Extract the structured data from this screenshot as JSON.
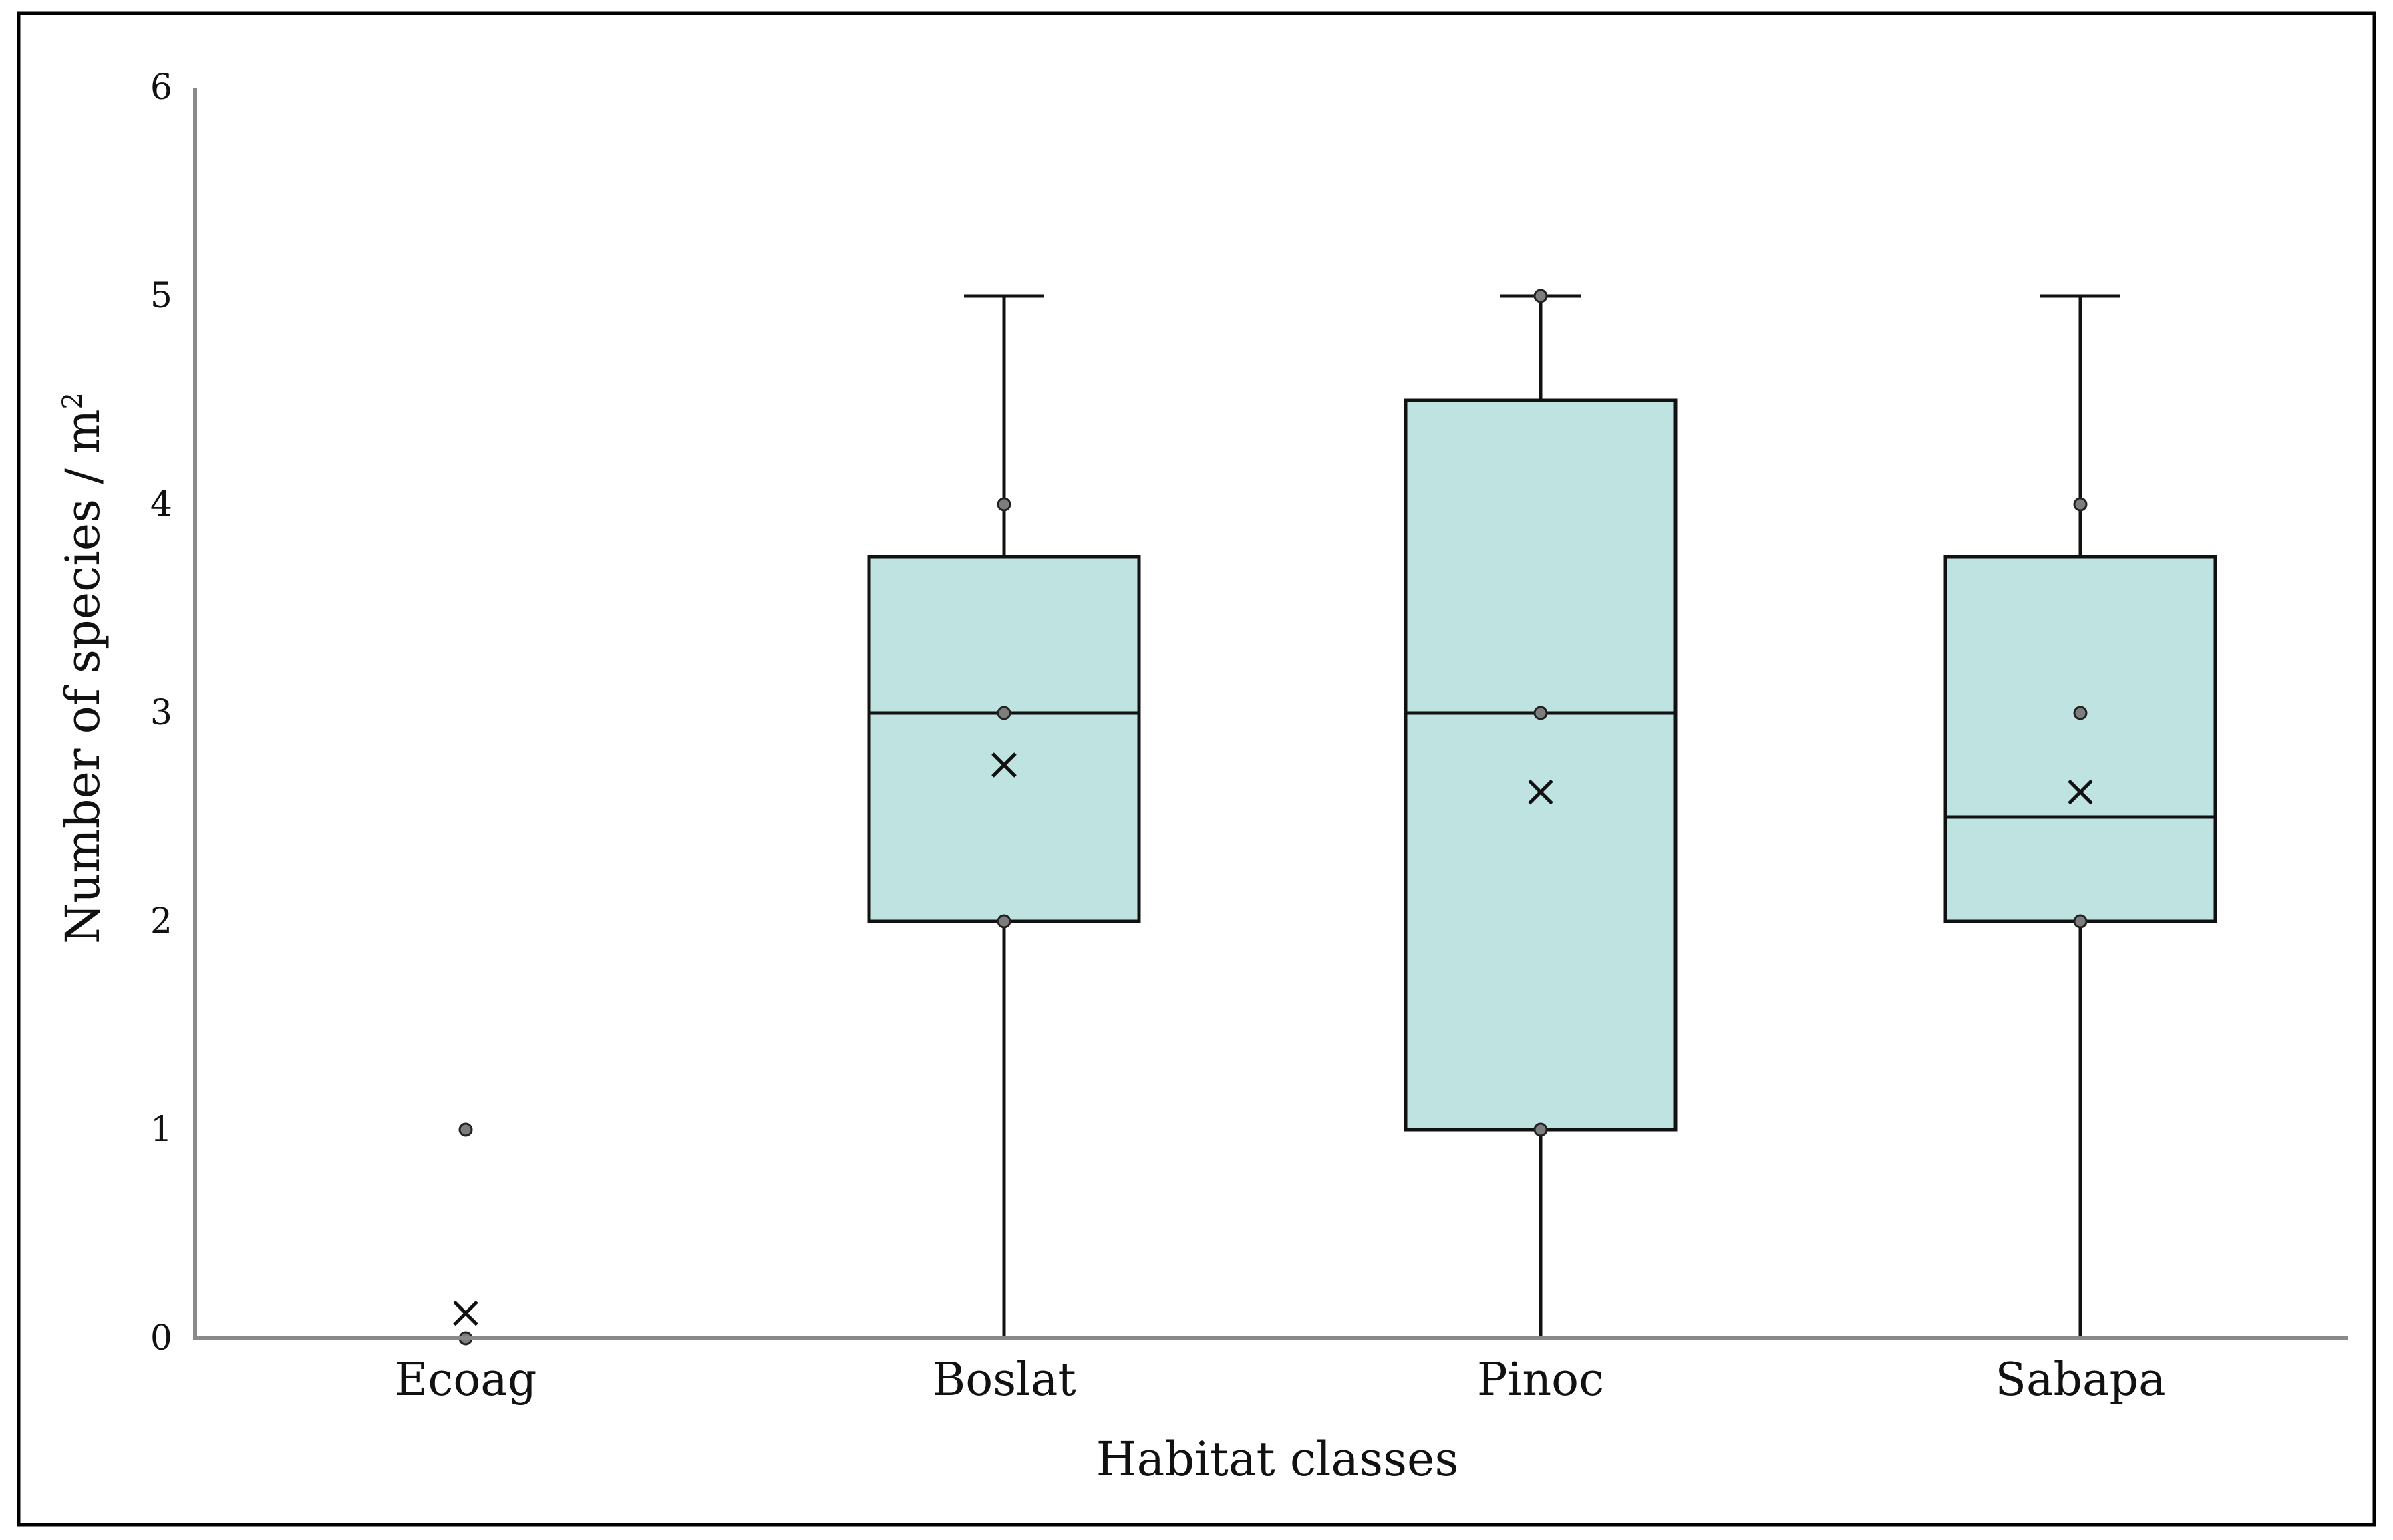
{
  "chart_data": {
    "type": "box",
    "title": "",
    "xlabel": "Habitat classes",
    "ylabel": "Number of species / m",
    "ylabel_superscript": "2",
    "ylim": [
      0,
      6
    ],
    "yticks": [
      "0",
      "1",
      "2",
      "3",
      "4",
      "5",
      "6"
    ],
    "grid": false,
    "legend": "none",
    "categories": [
      "Ecoag",
      "Boslat",
      "Pinoc",
      "Sabapa"
    ],
    "boxes": [
      {
        "category": "Ecoag",
        "min": 0,
        "q1": 0,
        "median": 0,
        "q3": 0,
        "max": 0,
        "mean": 0.12,
        "points": [
          0,
          1
        ]
      },
      {
        "category": "Boslat",
        "min": 0,
        "q1": 2,
        "median": 3,
        "q3": 3.75,
        "max": 5,
        "mean": 2.75,
        "points": [
          2,
          3,
          4
        ]
      },
      {
        "category": "Pinoc",
        "min": 0,
        "q1": 1,
        "median": 3,
        "q3": 4.5,
        "max": 5,
        "mean": 2.62,
        "points": [
          1,
          3,
          5
        ]
      },
      {
        "category": "Sabapa",
        "min": 0,
        "q1": 2,
        "median": 2.5,
        "q3": 3.75,
        "max": 5,
        "mean": 2.62,
        "points": [
          2,
          3,
          4
        ]
      }
    ],
    "colors": {
      "box_fill": "#bee3e1",
      "stroke": "#111111",
      "axis": "#8a8a8a",
      "point": "#7d7d7d",
      "frame": "#000000"
    }
  }
}
